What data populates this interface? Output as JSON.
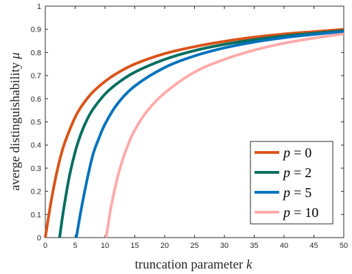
{
  "chart_data": {
    "type": "line",
    "title": "",
    "xlabel": "truncation parameter",
    "xlabel_var": "k",
    "ylabel": "averge distinguishability",
    "ylabel_var": "μ",
    "xlim": [
      0,
      50
    ],
    "ylim": [
      0,
      1
    ],
    "xticks": [
      "0",
      "5",
      "10",
      "15",
      "20",
      "25",
      "30",
      "35",
      "40",
      "45",
      "50"
    ],
    "yticks": [
      "0",
      "0.1",
      "0.2",
      "0.3",
      "0.4",
      "0.5",
      "0.6",
      "0.7",
      "0.8",
      "0.9",
      "1"
    ],
    "grid": false,
    "legend_position": "bottom-right",
    "series": [
      {
        "name_var": "p",
        "name_value": "0",
        "color": "#d95319",
        "x": [
          0,
          1,
          2,
          3,
          4,
          5,
          6,
          7,
          8,
          10,
          12,
          15,
          20,
          25,
          30,
          35,
          40,
          45,
          50
        ],
        "y": [
          0,
          0.16,
          0.29,
          0.39,
          0.46,
          0.52,
          0.565,
          0.6,
          0.63,
          0.675,
          0.71,
          0.75,
          0.795,
          0.825,
          0.848,
          0.866,
          0.88,
          0.89,
          0.9
        ]
      },
      {
        "name_var": "p",
        "name_value": "2",
        "color": "#006e60",
        "x": [
          2.4,
          3,
          4,
          5,
          6,
          7,
          8,
          10,
          12,
          15,
          20,
          25,
          30,
          35,
          40,
          45,
          50
        ],
        "y": [
          0,
          0.11,
          0.26,
          0.37,
          0.45,
          0.51,
          0.555,
          0.62,
          0.665,
          0.715,
          0.77,
          0.808,
          0.835,
          0.855,
          0.871,
          0.883,
          0.894
        ]
      },
      {
        "name_var": "p",
        "name_value": "5",
        "color": "#0072bd",
        "x": [
          5.2,
          6,
          7,
          8,
          9,
          10,
          12,
          15,
          20,
          25,
          30,
          35,
          40,
          45,
          50
        ],
        "y": [
          0,
          0.12,
          0.25,
          0.36,
          0.43,
          0.49,
          0.575,
          0.655,
          0.735,
          0.785,
          0.82,
          0.845,
          0.864,
          0.878,
          0.89
        ]
      },
      {
        "name_var": "p",
        "name_value": "10",
        "color": "#ffaaaa",
        "x": [
          10.2,
          11,
          12,
          13,
          14,
          15,
          17,
          20,
          25,
          30,
          35,
          40,
          45,
          50
        ],
        "y": [
          0,
          0.13,
          0.25,
          0.34,
          0.41,
          0.465,
          0.545,
          0.625,
          0.715,
          0.77,
          0.81,
          0.84,
          0.862,
          0.88
        ]
      }
    ]
  }
}
